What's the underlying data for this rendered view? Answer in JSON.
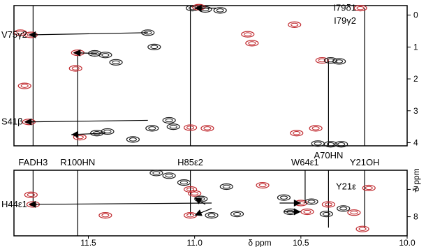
{
  "chart_data": {
    "type": "scatter",
    "subtype": "2D NMR spectrum (contour peaks with NOE connectivity lines)",
    "x_axis": {
      "label": "δ ppm",
      "reversed": true,
      "range": [
        11.85,
        10.0
      ],
      "ticks": [
        11.5,
        11.0,
        10.5,
        10.0
      ],
      "tick_labels": [
        "11.5",
        "11.0",
        "10.5",
        "10.0"
      ]
    },
    "upper_panel": {
      "y_axis": {
        "label": "",
        "range": [
          -0.3,
          4.1
        ],
        "ticks": [
          0,
          1,
          2,
          3,
          4
        ],
        "tick_labels": [
          "0",
          "1",
          "2",
          "3",
          "4"
        ],
        "reversed": true
      },
      "labels": [
        {
          "text": "V75γ2",
          "y": 0.62
        },
        {
          "text": "S41β",
          "y": 3.35
        },
        {
          "text": "I79δ1",
          "y": -0.22
        },
        {
          "text": "I79γ2",
          "y": 0.18
        }
      ],
      "peaks": [
        {
          "x": 11.77,
          "y": 0.62,
          "color": "#c0282d"
        },
        {
          "x": 11.82,
          "y": 0.55,
          "color": "#c0282d"
        },
        {
          "x": 11.78,
          "y": 3.35,
          "color": "#c0282d"
        },
        {
          "x": 11.8,
          "y": 2.22,
          "color": "#c0282d"
        },
        {
          "x": 11.55,
          "y": 1.18,
          "color": "#c0282d"
        },
        {
          "x": 11.47,
          "y": 1.2,
          "color": "#1a1a1a"
        },
        {
          "x": 11.42,
          "y": 1.25,
          "color": "#1a1a1a"
        },
        {
          "x": 11.37,
          "y": 1.48,
          "color": "#1a1a1a"
        },
        {
          "x": 11.56,
          "y": 1.67,
          "color": "#c0282d"
        },
        {
          "x": 11.46,
          "y": 3.7,
          "color": "#1a1a1a"
        },
        {
          "x": 11.41,
          "y": 3.65,
          "color": "#1a1a1a"
        },
        {
          "x": 11.54,
          "y": 3.83,
          "color": "#c0282d"
        },
        {
          "x": 11.29,
          "y": 3.9,
          "color": "#1a1a1a"
        },
        {
          "x": 11.22,
          "y": 0.55,
          "color": "#1a1a1a"
        },
        {
          "x": 11.19,
          "y": 1.0,
          "color": "#1a1a1a"
        },
        {
          "x": 11.12,
          "y": 3.3,
          "color": "#1a1a1a"
        },
        {
          "x": 11.1,
          "y": 3.5,
          "color": "#1a1a1a"
        },
        {
          "x": 11.02,
          "y": 3.53,
          "color": "#c0282d"
        },
        {
          "x": 10.94,
          "y": 3.55,
          "color": "#c0282d"
        },
        {
          "x": 11.01,
          "y": -0.22,
          "color": "#1a1a1a"
        },
        {
          "x": 10.95,
          "y": -0.18,
          "color": "#1a1a1a"
        },
        {
          "x": 10.88,
          "y": -0.15,
          "color": "#1a1a1a"
        },
        {
          "x": 10.98,
          "y": -0.25,
          "color": "#c0282d"
        },
        {
          "x": 10.75,
          "y": 0.6,
          "color": "#c0282d"
        },
        {
          "x": 10.73,
          "y": 0.88,
          "color": "#c0282d"
        },
        {
          "x": 10.53,
          "y": 0.3,
          "color": "#c0282d"
        },
        {
          "x": 10.4,
          "y": 1.42,
          "color": "#c0282d"
        },
        {
          "x": 10.36,
          "y": 1.42,
          "color": "#1a1a1a"
        },
        {
          "x": 10.32,
          "y": 1.45,
          "color": "#1a1a1a"
        },
        {
          "x": 10.42,
          "y": 4.03,
          "color": "#1a1a1a"
        },
        {
          "x": 10.36,
          "y": 4.05,
          "color": "#1a1a1a"
        },
        {
          "x": 10.31,
          "y": 4.05,
          "color": "#1a1a1a"
        },
        {
          "x": 10.43,
          "y": 3.55,
          "color": "#c0282d"
        },
        {
          "x": 10.22,
          "y": -0.22,
          "color": "#c0282d"
        },
        {
          "x": 11.2,
          "y": 3.55,
          "color": "#1a1a1a"
        },
        {
          "x": 10.52,
          "y": 3.7,
          "color": "#c0282d"
        }
      ],
      "lines": [
        {
          "x1": 11.76,
          "y1": -0.3,
          "x2": 11.76,
          "y2": 4.1
        },
        {
          "x1": 11.55,
          "y1": 1.18,
          "x2": 11.55,
          "y2": 4.1
        },
        {
          "x1": 11.02,
          "y1": -0.3,
          "x2": 11.02,
          "y2": 4.1
        },
        {
          "x1": 10.37,
          "y1": 1.42,
          "x2": 10.37,
          "y2": 4.1
        },
        {
          "x1": 10.2,
          "y1": -0.22,
          "x2": 10.2,
          "y2": 4.1
        }
      ],
      "arrows": [
        {
          "from_x": 11.22,
          "from_y": 0.55,
          "to_x": 11.78,
          "to_y": 0.62
        },
        {
          "from_x": 11.46,
          "from_y": 1.2,
          "to_x": 11.57,
          "to_y": 1.18
        },
        {
          "from_x": 11.22,
          "from_y": 3.3,
          "to_x": 11.8,
          "to_y": 3.35
        },
        {
          "from_x": 11.42,
          "from_y": 3.7,
          "to_x": 11.58,
          "to_y": 3.75
        },
        {
          "from_x": 10.9,
          "from_y": -0.22,
          "to_x": 11.0,
          "to_y": -0.22
        }
      ]
    },
    "lower_panel": {
      "y_axis": {
        "label": "δ ppm",
        "range": [
          6.3,
          8.7
        ],
        "ticks": [
          7,
          8
        ],
        "tick_labels": [
          "7",
          "8"
        ],
        "reversed": true
      },
      "labels": [
        {
          "text": "H44ε1",
          "y": 7.55
        },
        {
          "text": "Y21ε",
          "y": 6.9
        }
      ],
      "peaks": [
        {
          "x": 11.76,
          "y": 7.55,
          "color": "#c0282d"
        },
        {
          "x": 11.77,
          "y": 7.2,
          "color": "#c0282d"
        },
        {
          "x": 11.12,
          "y": 6.5,
          "color": "#1a1a1a"
        },
        {
          "x": 11.05,
          "y": 6.75,
          "color": "#1a1a1a"
        },
        {
          "x": 11.02,
          "y": 7.0,
          "color": "#c0282d"
        },
        {
          "x": 11.0,
          "y": 7.15,
          "color": "#c0282d"
        },
        {
          "x": 10.97,
          "y": 7.35,
          "color": "#1a1a1a"
        },
        {
          "x": 10.85,
          "y": 6.9,
          "color": "#1a1a1a"
        },
        {
          "x": 10.92,
          "y": 7.95,
          "color": "#1a1a1a"
        },
        {
          "x": 11.02,
          "y": 7.95,
          "color": "#c0282d"
        },
        {
          "x": 10.8,
          "y": 7.9,
          "color": "#1a1a1a"
        },
        {
          "x": 10.68,
          "y": 6.85,
          "color": "#c0282d"
        },
        {
          "x": 10.58,
          "y": 7.3,
          "color": "#1a1a1a"
        },
        {
          "x": 10.5,
          "y": 7.5,
          "color": "#c0282d"
        },
        {
          "x": 10.45,
          "y": 7.45,
          "color": "#1a1a1a"
        },
        {
          "x": 10.55,
          "y": 7.82,
          "color": "#1a1a1a"
        },
        {
          "x": 10.47,
          "y": 7.82,
          "color": "#c0282d"
        },
        {
          "x": 10.38,
          "y": 7.9,
          "color": "#1a1a1a"
        },
        {
          "x": 10.3,
          "y": 7.7,
          "color": "#1a1a1a"
        },
        {
          "x": 10.37,
          "y": 7.55,
          "color": "#c0282d"
        },
        {
          "x": 10.25,
          "y": 7.85,
          "color": "#c0282d"
        },
        {
          "x": 10.18,
          "y": 6.95,
          "color": "#c0282d"
        },
        {
          "x": 10.21,
          "y": 8.45,
          "color": "#c0282d"
        },
        {
          "x": 11.18,
          "y": 6.4,
          "color": "#1a1a1a"
        },
        {
          "x": 11.42,
          "y": 7.95,
          "color": "#c0282d"
        }
      ],
      "lines": [
        {
          "x1": 11.76,
          "y1": 6.3,
          "x2": 11.76,
          "y2": 7.55
        },
        {
          "x1": 11.55,
          "y1": 6.3,
          "x2": 11.55,
          "y2": 8.7
        },
        {
          "x1": 11.02,
          "y1": 6.3,
          "x2": 11.02,
          "y2": 7.95
        },
        {
          "x1": 10.48,
          "y1": 6.3,
          "x2": 10.48,
          "y2": 7.5
        },
        {
          "x1": 10.37,
          "y1": 6.3,
          "x2": 10.37,
          "y2": 8.4
        },
        {
          "x1": 10.2,
          "y1": 6.3,
          "x2": 10.2,
          "y2": 8.4
        }
      ],
      "arrows": [
        {
          "from_x": 10.92,
          "from_y": 7.5,
          "to_x": 11.78,
          "to_y": 7.55
        },
        {
          "from_x": 10.95,
          "from_y": 7.55,
          "to_x": 11.0,
          "to_y": 7.3
        },
        {
          "from_x": 10.92,
          "from_y": 7.7,
          "to_x": 11.0,
          "to_y": 7.95
        },
        {
          "from_x": 10.6,
          "from_y": 7.5,
          "to_x": 10.5,
          "to_y": 7.5
        },
        {
          "from_x": 10.58,
          "from_y": 7.82,
          "to_x": 10.5,
          "to_y": 7.82
        }
      ]
    },
    "column_labels": [
      {
        "text": "FADH3",
        "x": 11.76
      },
      {
        "text": "R100HN",
        "x": 11.55
      },
      {
        "text": "H85ε2",
        "x": 11.02
      },
      {
        "text": "A70HN",
        "x": 10.37
      },
      {
        "text": "W64ε1",
        "x": 10.48
      },
      {
        "text": "Y21OH",
        "x": 10.2
      }
    ],
    "colors": {
      "red": "#c0282d",
      "black": "#1a1a1a"
    }
  }
}
